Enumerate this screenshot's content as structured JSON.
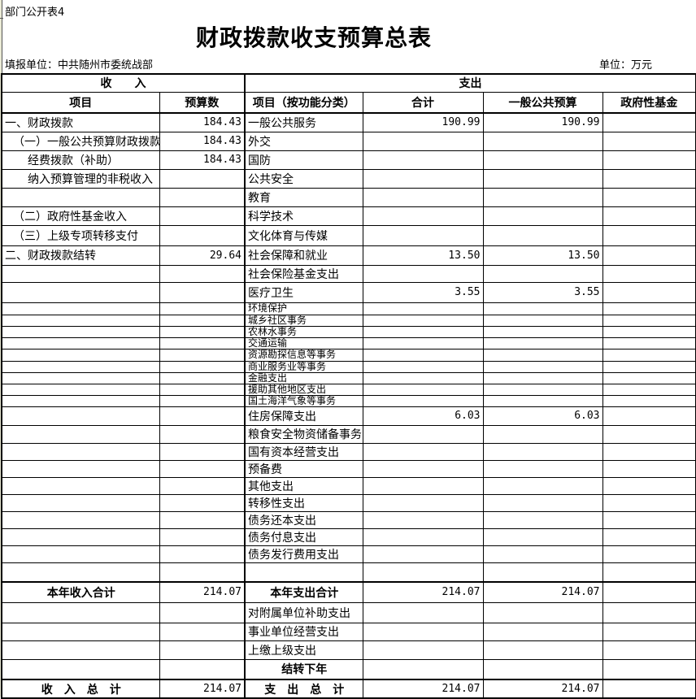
{
  "page": {
    "sheet_label": "部门公开表4",
    "title": "财政拨款收支预算总表",
    "reporting_unit": "填报单位：中共随州市委统战部",
    "unit_note": "单位：万元"
  },
  "colors": {
    "border": "#000000",
    "background": "#ffffff",
    "page_edge_strip": "#ebebd6"
  },
  "table": {
    "header": {
      "income_group": "收　　入",
      "expense_group": "支出",
      "columns": [
        "项目",
        "预算数",
        "项目（按功能分类）",
        "合计",
        "一般公共预算",
        "政府性基金"
      ]
    },
    "rows": [
      {
        "h": 23,
        "inc": "一、财政拨款",
        "ind": 0,
        "incv": "184.43",
        "exp": "一般公共服务",
        "tot": "190.99",
        "gen": "190.99",
        "fund": ""
      },
      {
        "h": 23,
        "inc": "（一）一般公共预算财政拨款",
        "ind": 1,
        "incv": "184.43",
        "exp": "外交",
        "tot": "",
        "gen": "",
        "fund": ""
      },
      {
        "h": 23,
        "inc": "经费拨款（补助）",
        "ind": 2,
        "incv": "184.43",
        "exp": "国防",
        "tot": "",
        "gen": "",
        "fund": ""
      },
      {
        "h": 23,
        "inc": "纳入预算管理的非税收入",
        "ind": 2,
        "incv": "",
        "exp": "公共安全",
        "tot": "",
        "gen": "",
        "fund": ""
      },
      {
        "h": 23,
        "inc": "",
        "incv": "",
        "exp": "教育",
        "tot": "",
        "gen": "",
        "fund": ""
      },
      {
        "h": 23,
        "inc": "（二）政府性基金收入",
        "ind": 1,
        "incv": "",
        "exp": "科学技术",
        "tot": "",
        "gen": "",
        "fund": ""
      },
      {
        "h": 25,
        "inc": "（三）上级专项转移支付",
        "ind": 1,
        "incv": "",
        "exp": "文化体育与传媒",
        "tot": "",
        "gen": "",
        "fund": ""
      },
      {
        "h": 24,
        "inc": "二、财政拨款结转",
        "ind": 0,
        "incv": "29.64",
        "exp": "社会保障和就业",
        "tot": "13.50",
        "gen": "13.50",
        "fund": ""
      },
      {
        "h": 20,
        "inc": "",
        "incv": "",
        "exp": "社会保险基金支出",
        "tot": "",
        "gen": "",
        "fund": ""
      },
      {
        "h": 25,
        "inc": "",
        "incv": "",
        "exp": "医疗卫生",
        "tot": "3.55",
        "gen": "3.55",
        "fund": ""
      },
      {
        "h": 15,
        "small": 1,
        "inc": "",
        "incv": "",
        "exp": "环境保护",
        "tot": "",
        "gen": "",
        "fund": ""
      },
      {
        "h": 14,
        "small": 1,
        "inc": "",
        "incv": "",
        "exp": "城乡社区事务",
        "tot": "",
        "gen": "",
        "fund": ""
      },
      {
        "h": 14,
        "small": 1,
        "inc": "",
        "incv": "",
        "exp": "农林水事务",
        "tot": "",
        "gen": "",
        "fund": ""
      },
      {
        "h": 14,
        "small": 1,
        "inc": "",
        "incv": "",
        "exp": "交通运输",
        "tot": "",
        "gen": "",
        "fund": ""
      },
      {
        "h": 15,
        "small": 1,
        "inc": "",
        "incv": "",
        "exp": "资源勘探信息等事务",
        "tot": "",
        "gen": "",
        "fund": ""
      },
      {
        "h": 14,
        "small": 1,
        "inc": "",
        "incv": "",
        "exp": "商业服务业等事务",
        "tot": "",
        "gen": "",
        "fund": ""
      },
      {
        "h": 14,
        "small": 1,
        "inc": "",
        "incv": "",
        "exp": "金融支出",
        "tot": "",
        "gen": "",
        "fund": ""
      },
      {
        "h": 14,
        "small": 1,
        "inc": "",
        "incv": "",
        "exp": "援助其他地区支出",
        "tot": "",
        "gen": "",
        "fund": ""
      },
      {
        "h": 14,
        "small": 1,
        "inc": "",
        "incv": "",
        "exp": "国土海洋气象等事务",
        "tot": "",
        "gen": "",
        "fund": ""
      },
      {
        "h": 23,
        "inc": "",
        "incv": "",
        "exp": "住房保障支出",
        "tot": "6.03",
        "gen": "6.03",
        "fund": ""
      },
      {
        "h": 22,
        "inc": "",
        "incv": "",
        "exp": "粮食安全物资储备事务",
        "tot": "",
        "gen": "",
        "fund": ""
      },
      {
        "h": 20,
        "inc": "",
        "incv": "",
        "exp": "国有资本经营支出",
        "tot": "",
        "gen": "",
        "fund": ""
      },
      {
        "h": 18,
        "inc": "",
        "incv": "",
        "exp": "预备费",
        "tot": "",
        "gen": "",
        "fund": ""
      },
      {
        "h": 20,
        "inc": "",
        "incv": "",
        "exp": "其他支出",
        "tot": "",
        "gen": "",
        "fund": ""
      },
      {
        "h": 20,
        "inc": "",
        "incv": "",
        "exp": "转移性支出",
        "tot": "",
        "gen": "",
        "fund": ""
      },
      {
        "h": 20,
        "inc": "",
        "incv": "",
        "exp": "债务还本支出",
        "tot": "",
        "gen": "",
        "fund": ""
      },
      {
        "h": 20,
        "inc": "",
        "incv": "",
        "exp": "债务付息支出",
        "tot": "",
        "gen": "",
        "fund": ""
      },
      {
        "h": 20,
        "inc": "",
        "incv": "",
        "exp": "债务发行费用支出",
        "tot": "",
        "gen": "",
        "fund": ""
      },
      {
        "h": 24,
        "inc": "",
        "incv": "",
        "exp": "",
        "tot": "",
        "gen": "",
        "fund": ""
      },
      {
        "h": 25,
        "thick": 1,
        "ib": 1,
        "eb": 1,
        "inc": "本年收入合计",
        "incv": "214.07",
        "exp": "本年支出合计",
        "tot": "214.07",
        "gen": "214.07",
        "fund": ""
      },
      {
        "h": 25,
        "inc": "",
        "incv": "",
        "exp": "对附属单位补助支出",
        "tot": "",
        "gen": "",
        "fund": ""
      },
      {
        "h": 22,
        "inc": "",
        "incv": "",
        "exp": "事业单位经营支出",
        "tot": "",
        "gen": "",
        "fund": ""
      },
      {
        "h": 23,
        "inc": "",
        "incv": "",
        "exp": "上缴上级支出",
        "tot": "",
        "gen": "",
        "fund": ""
      },
      {
        "h": 25,
        "eb": 1,
        "inc": "",
        "incv": "",
        "exp": "结转下年",
        "tot": "",
        "gen": "",
        "fund": ""
      },
      {
        "h": 23,
        "thick": 1,
        "ib": 1,
        "eb": 1,
        "inc": "收　入　总　计",
        "incv": "214.07",
        "exp": "支　出　总　计",
        "tot": "214.07",
        "gen": "214.07",
        "fund": ""
      }
    ]
  }
}
